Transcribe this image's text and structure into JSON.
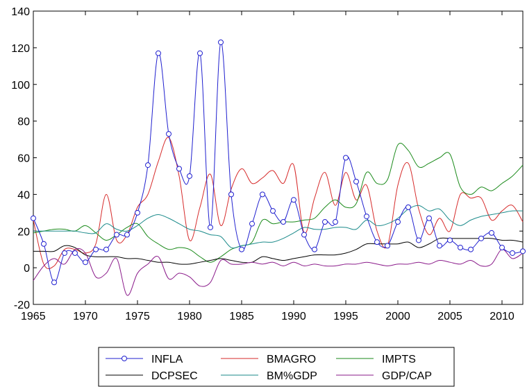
{
  "chart_data": {
    "type": "line",
    "title": "",
    "xlabel": "",
    "ylabel": "",
    "xlim": [
      1965,
      2012
    ],
    "ylim": [
      -20,
      140
    ],
    "yticks": [
      -20,
      0,
      20,
      40,
      60,
      80,
      100,
      120,
      140
    ],
    "xticks": [
      1965,
      1970,
      1975,
      1980,
      1985,
      1990,
      1995,
      2000,
      2005,
      2010
    ],
    "grid": false,
    "legend_position": "bottom",
    "x": [
      1965,
      1966,
      1967,
      1968,
      1969,
      1970,
      1971,
      1972,
      1973,
      1974,
      1975,
      1976,
      1977,
      1978,
      1979,
      1980,
      1981,
      1982,
      1983,
      1984,
      1985,
      1986,
      1987,
      1988,
      1989,
      1990,
      1991,
      1992,
      1993,
      1994,
      1995,
      1996,
      1997,
      1998,
      1999,
      2000,
      2001,
      2002,
      2003,
      2004,
      2005,
      2006,
      2007,
      2008,
      2009,
      2010,
      2011,
      2012
    ],
    "series": [
      {
        "name": "INFLA",
        "color": "#1f1fcf",
        "markers": true,
        "values": [
          27,
          13,
          -8,
          8,
          8,
          3,
          10,
          10,
          18,
          18,
          30,
          56,
          117,
          73,
          54,
          50,
          117,
          22,
          123,
          40,
          10,
          24,
          40,
          31,
          25,
          37,
          18,
          10,
          25,
          25,
          60,
          47,
          28,
          14,
          12,
          25,
          33,
          15,
          27,
          12,
          15,
          11,
          10,
          16,
          19,
          11,
          8,
          9
        ]
      },
      {
        "name": "BMAGRO",
        "color": "#d62a2a",
        "markers": false,
        "values": [
          26,
          2,
          1,
          10,
          10,
          8,
          13,
          40,
          15,
          18,
          33,
          40,
          58,
          71,
          50,
          15,
          33,
          51,
          23,
          43,
          54,
          46,
          49,
          53,
          46,
          56,
          19,
          38,
          52,
          34,
          52,
          37,
          45,
          20,
          12,
          45,
          57,
          32,
          18,
          27,
          20,
          40,
          38,
          38,
          26,
          31,
          34,
          25
        ]
      },
      {
        "name": "IMPTS",
        "color": "#1a8a1a",
        "markers": false,
        "values": [
          19,
          20,
          21,
          21,
          20,
          23,
          19,
          15,
          18,
          22,
          24,
          17,
          13,
          10,
          11,
          10,
          6,
          3,
          6,
          10,
          12,
          14,
          26,
          24,
          25,
          25,
          26,
          27,
          33,
          37,
          33,
          35,
          52,
          46,
          48,
          67,
          64,
          55,
          57,
          60,
          62,
          44,
          40,
          44,
          42,
          46,
          50,
          56
        ]
      },
      {
        "name": "DCPSEC",
        "color": "#000000",
        "markers": false,
        "values": [
          9,
          9,
          9,
          12,
          11,
          7,
          6,
          6,
          6,
          5,
          5,
          4,
          3,
          3,
          2,
          2,
          3,
          4,
          5,
          4,
          3,
          3,
          6,
          5,
          4,
          5,
          6,
          7,
          7,
          7,
          8,
          10,
          13,
          13,
          13,
          13,
          14,
          11,
          13,
          16,
          16,
          16,
          16,
          16,
          16,
          15,
          15,
          14
        ]
      },
      {
        "name": "BM%GDP",
        "color": "#1a8a8a",
        "markers": false,
        "values": [
          20,
          20,
          20,
          20,
          20,
          19,
          19,
          24,
          21,
          20,
          23,
          27,
          29,
          27,
          24,
          21,
          20,
          18,
          17,
          11,
          12,
          13,
          14,
          14,
          16,
          19,
          22,
          21,
          21,
          22,
          22,
          21,
          26,
          23,
          24,
          27,
          32,
          34,
          31,
          32,
          26,
          23,
          26,
          28,
          29,
          30,
          31,
          31
        ]
      },
      {
        "name": "GDP/CAP",
        "color": "#8a1a8a",
        "markers": false,
        "values": [
          -7,
          1,
          5,
          2,
          10,
          8,
          -5,
          -3,
          5,
          -15,
          -3,
          2,
          6,
          -6,
          -3,
          -5,
          -10,
          -8,
          4,
          2,
          2,
          3,
          2,
          3,
          1,
          3,
          1,
          2,
          1,
          1,
          2,
          2,
          3,
          2,
          1,
          2,
          2,
          3,
          2,
          4,
          3,
          2,
          4,
          1,
          2,
          10,
          5,
          8
        ]
      }
    ],
    "ytick_labels": [
      "-20",
      "0",
      "20",
      "40",
      "60",
      "80",
      "100",
      "120",
      "140"
    ],
    "xtick_labels": [
      "1965",
      "1970",
      "1975",
      "1980",
      "1985",
      "1990",
      "1995",
      "2000",
      "2005",
      "2010"
    ],
    "legend": [
      "INFLA",
      "BMAGRO",
      "IMPTS",
      "DCPSEC",
      "BM%GDP",
      "GDP/CAP"
    ]
  }
}
